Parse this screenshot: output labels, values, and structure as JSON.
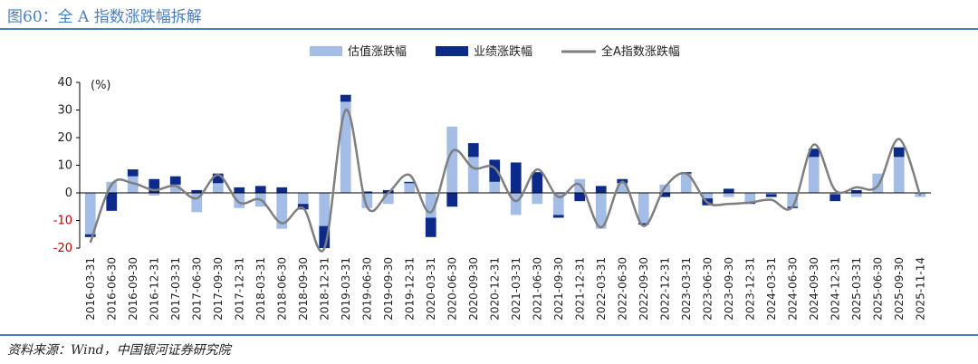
{
  "figure": {
    "title": "图60：全 A 指数涨跌幅拆解",
    "source": "资料来源：Wind，中国银河证券研究院"
  },
  "colors": {
    "valuation": "#a3bde6",
    "earnings": "#0b2a8a",
    "index_line": "#7f7f7f",
    "axis_negative_label": "#c00000",
    "title_blue": "#4a7fc1"
  },
  "chart_data": {
    "type": "bar",
    "stacked": true,
    "ylabel": "(%)",
    "ylim": [
      -20,
      40
    ],
    "yticks": [
      -20,
      -10,
      0,
      10,
      20,
      30,
      40
    ],
    "grid": false,
    "legend_position": "top-center",
    "categories": [
      "2016-03-31",
      "2016-06-30",
      "2016-09-30",
      "2016-12-31",
      "2017-03-31",
      "2017-06-30",
      "2017-09-30",
      "2017-12-31",
      "2018-03-31",
      "2018-06-30",
      "2018-09-30",
      "2018-12-31",
      "2019-03-31",
      "2019-06-30",
      "2019-09-30",
      "2019-12-31",
      "2020-03-31",
      "2020-06-30",
      "2020-09-30",
      "2020-12-31",
      "2021-03-31",
      "2021-06-30",
      "2021-09-30",
      "2021-12-31",
      "2022-03-31",
      "2022-06-30",
      "2022-09-30",
      "2022-12-31",
      "2023-03-31",
      "2023-06-30",
      "2023-09-30",
      "2023-12-31",
      "2024-03-31",
      "2024-06-30",
      "2024-09-30",
      "2024-12-31",
      "2025-03-31",
      "2025-06-30",
      "2025-09-30",
      "2025-11-14"
    ],
    "series": [
      {
        "name": "估值涨跌幅",
        "kind": "bar",
        "values": [
          -15,
          4,
          6,
          -1,
          3,
          -7,
          3.5,
          -5.5,
          -5,
          -13,
          -4,
          -12,
          33,
          -5.5,
          -4,
          3.5,
          -9,
          24,
          13,
          4,
          -8,
          -4,
          -8,
          5,
          -13,
          3.5,
          -11,
          3,
          7,
          -2,
          -1.5,
          -3.5,
          -0.5,
          -5,
          13,
          -0.5,
          -1.5,
          7,
          13,
          -1.5
        ]
      },
      {
        "name": "业绩涨跌幅",
        "kind": "bar",
        "values": [
          -1,
          -6.5,
          2.5,
          5,
          3,
          1,
          3.5,
          2,
          2.5,
          2,
          -2,
          -8,
          2.5,
          0.5,
          1,
          0.5,
          -7,
          -5,
          5,
          8,
          11,
          7.5,
          -1,
          -3,
          2.5,
          1.5,
          -0.5,
          -1.5,
          0.5,
          -2.5,
          1.5,
          -0.5,
          -1,
          -0.5,
          3,
          -2.5,
          1,
          0,
          3.5,
          0
        ]
      },
      {
        "name": "全A指数涨跌幅",
        "kind": "line",
        "values": [
          -18,
          3,
          3.5,
          1,
          2.5,
          -2,
          6.5,
          -3.5,
          -2.5,
          -11,
          -5.5,
          -20,
          30,
          -5,
          0,
          6.5,
          -7,
          15,
          9,
          9,
          -3,
          8.5,
          -1.5,
          3,
          -12.5,
          4,
          -12,
          2,
          7,
          -3.5,
          -4,
          -3.5,
          -2.5,
          -5,
          17.5,
          1,
          2,
          2.5,
          19.5,
          -1
        ]
      }
    ]
  }
}
